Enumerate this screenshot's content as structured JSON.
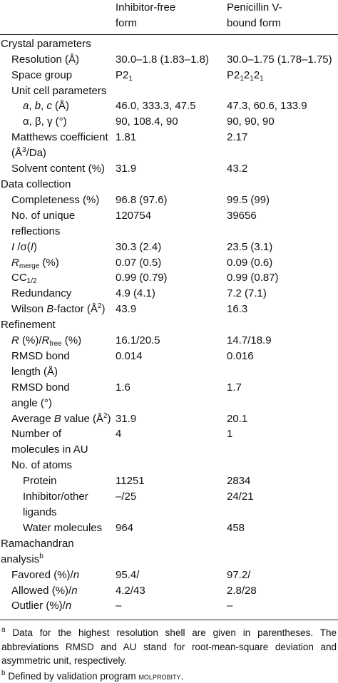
{
  "table": {
    "header": [
      "",
      "Inhibitor-free\nform",
      "Penicillin V-\nbound form"
    ],
    "sections": [
      {
        "title": "Crystal parameters",
        "rows": [
          {
            "label": "Resolution (Å)",
            "values": [
              "30.0–1.8 (1.83–1.8)",
              "30.0–1.75 (1.78–1.75)"
            ]
          },
          {
            "label": "Space group",
            "values": [
              [
                "P2",
                {
                  "text": "1",
                  "style": "sub"
                }
              ],
              [
                "P2",
                {
                  "text": "1",
                  "style": "sub"
                },
                "2",
                {
                  "text": "1",
                  "style": "sub"
                },
                "2",
                {
                  "text": "1",
                  "style": "sub"
                }
              ]
            ]
          },
          {
            "label": "Unit cell parameters",
            "rows": [
              {
                "label": [
                  {
                    "text": "a",
                    "style": "i"
                  },
                  ", ",
                  {
                    "text": "b",
                    "style": "i"
                  },
                  ", ",
                  {
                    "text": "c",
                    "style": "i"
                  },
                  " (Å)"
                ],
                "values": [
                  "46.0, 333.3, 47.5",
                  "47.3, 60.6, 133.9"
                ]
              },
              {
                "label": "α, β, γ (°)",
                "values": [
                  "90, 108.4, 90",
                  "90, 90, 90"
                ]
              }
            ]
          },
          {
            "label": [
              "Matthews coefficient\n(Å",
              {
                "text": "3",
                "style": "sup"
              },
              "/Da)"
            ],
            "values": [
              "1.81",
              "2.17"
            ]
          },
          {
            "label": "Solvent content (%)",
            "values": [
              "31.9",
              "43.2"
            ]
          }
        ]
      },
      {
        "title": "Data collection",
        "rows": [
          {
            "label": "Completeness (%)",
            "values": [
              "96.8 (97.6)",
              "99.5 (99)"
            ]
          },
          {
            "label": "No. of unique\nreflections",
            "values": [
              "120754",
              "39656"
            ]
          },
          {
            "label": [
              {
                "text": "I",
                "style": "i"
              },
              " /σ(",
              {
                "text": "I",
                "style": "i"
              },
              ")"
            ],
            "values": [
              "30.3 (2.4)",
              "23.5 (3.1)"
            ]
          },
          {
            "label": [
              {
                "text": "R",
                "style": "i"
              },
              {
                "text": "merge",
                "style": "sub"
              },
              " (%)"
            ],
            "values": [
              "0.07 (0.5)",
              "0.09 (0.6)"
            ]
          },
          {
            "label": [
              "CC",
              {
                "text": "1/2",
                "style": "sub"
              }
            ],
            "values": [
              "0.99 (0.79)",
              "0.99 (0.87)"
            ]
          },
          {
            "label": "Redundancy",
            "values": [
              "4.9 (4.1)",
              "7.2 (7.1)"
            ]
          },
          {
            "label": [
              "Wilson ",
              {
                "text": "B",
                "style": "i"
              },
              "-factor (Å",
              {
                "text": "2",
                "style": "sup"
              },
              ")"
            ],
            "values": [
              "43.9",
              "16.3"
            ]
          }
        ]
      },
      {
        "title": "Refinement",
        "rows": [
          {
            "label": [
              {
                "text": "R",
                "style": "i"
              },
              " (%)/",
              {
                "text": "R",
                "style": "i"
              },
              {
                "text": "free",
                "style": "sub"
              },
              " (%)"
            ],
            "values": [
              "16.1/20.5",
              "14.7/18.9"
            ]
          },
          {
            "label": "RMSD bond\nlength (Å)",
            "values": [
              "0.014",
              "0.016"
            ]
          },
          {
            "label": "RMSD bond\nangle (°)",
            "values": [
              "1.6",
              "1.7"
            ]
          },
          {
            "label": [
              "Average ",
              {
                "text": "B",
                "style": "i"
              },
              " value (Å",
              {
                "text": "2",
                "style": "sup"
              },
              ")"
            ],
            "values": [
              "31.9",
              "20.1"
            ]
          },
          {
            "label": "Number of\nmolecules in AU",
            "values": [
              "4",
              "1"
            ]
          },
          {
            "label": "No. of atoms",
            "rows": [
              {
                "label": "Protein",
                "values": [
                  "11251",
                  "2834"
                ]
              },
              {
                "label": "Inhibitor/other\nligands",
                "values": [
                  "–/25",
                  "24/21"
                ]
              },
              {
                "label": "Water molecules",
                "values": [
                  "964",
                  "458"
                ]
              }
            ]
          }
        ]
      },
      {
        "title": [
          "Ramachandran analysis",
          {
            "text": "b",
            "style": "sup"
          }
        ],
        "rows": [
          {
            "label": [
              {
                "text": "Favored (%)/",
                "style": ""
              },
              {
                "text": "n",
                "style": "i"
              }
            ],
            "values": [
              "95.4/",
              "97.2/"
            ]
          },
          {
            "label": [
              "Allowed (%)/",
              {
                "text": "n",
                "style": "i"
              }
            ],
            "values": [
              "4.2/43",
              "2.8/28"
            ]
          },
          {
            "label": [
              "Outlier (%)/",
              {
                "text": "n",
                "style": "i"
              }
            ],
            "values": [
              "–",
              "–"
            ]
          }
        ]
      }
    ],
    "footnotes": [
      {
        "mark": "a",
        "text": "Data for the highest resolution shell are given in parentheses. The abbreviations RMSD and AU stand for root-mean-square deviation and asymmetric unit, respectively."
      },
      {
        "mark": "b",
        "text": [
          "Defined by validation program ",
          {
            "text": "molprobity",
            "style": "sc"
          },
          "."
        ]
      }
    ]
  }
}
